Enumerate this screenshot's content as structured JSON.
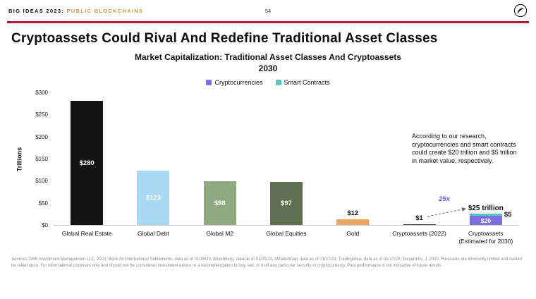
{
  "header": {
    "brand_left": "BIG IDEAS 2023:",
    "brand_right": "PUBLIC BLOCKCHAINS",
    "page_number": "54"
  },
  "title": "Cryptoassets Could Rival And Redefine Traditional Asset Classes",
  "accent_colors": {
    "divider_red": "#B01E33",
    "brand_gold": "#C19A3D",
    "growth_label_blue": "#5B64E0"
  },
  "chart_data": {
    "type": "bar",
    "title": "Market Capitalization: Traditional Asset Classes And Cryptoassets",
    "subtitle": "2030",
    "ylabel": "Trillions",
    "ylim": [
      0,
      300
    ],
    "grid": false,
    "legend_position": "top",
    "yticks": [
      {
        "value": 0,
        "label": "$0"
      },
      {
        "value": 50,
        "label": "$50"
      },
      {
        "value": 100,
        "label": "$100"
      },
      {
        "value": 150,
        "label": "$150"
      },
      {
        "value": 200,
        "label": "$200"
      },
      {
        "value": 250,
        "label": "$250"
      },
      {
        "value": 300,
        "label": "$300"
      }
    ],
    "legend": [
      {
        "label": "Cryptocurrencies",
        "color": "#7D6FE0"
      },
      {
        "label": "Smart Contracts",
        "color": "#4EC7C0"
      }
    ],
    "bars": [
      {
        "category": "Global Real Estate",
        "value": 280,
        "label": "$280",
        "color": "#141414",
        "label_position": "inside",
        "label_color": "#ffffff"
      },
      {
        "category": "Global Debt",
        "value": 123,
        "label": "$123",
        "color": "#A9D9F2",
        "label_position": "inside",
        "label_color": "#ffffff"
      },
      {
        "category": "Global M2",
        "value": 98,
        "label": "$98",
        "color": "#8FAA80",
        "label_position": "inside",
        "label_color": "#ffffff"
      },
      {
        "category": "Global Equities",
        "value": 97,
        "label": "$97",
        "color": "#5E7253",
        "label_position": "inside",
        "label_color": "#ffffff"
      },
      {
        "category": "Gold",
        "value": 12,
        "label": "$12",
        "color": "#F0A55F",
        "label_position": "above",
        "label_color": "#111111"
      },
      {
        "category": "Cryptoassets (2022)",
        "value": 1,
        "label": "$1",
        "color": "#3a3a3a",
        "label_position": "above",
        "label_color": "#111111"
      },
      {
        "category": "Cryptoassets (Estimated for 2030)",
        "stacked": true,
        "segments": [
          {
            "name": "Smart Contracts",
            "value": 5,
            "color": "#4EC7C0"
          },
          {
            "name": "Cryptocurrencies",
            "value": 20,
            "label": "$20",
            "color": "#7D6FE0",
            "label_color": "#ffffff"
          }
        ],
        "total_label": "$25 trillion",
        "side_label": "$5"
      }
    ],
    "annotation_note": "According to our research, cryptocurrencies and smart contracts could create $20 trillion and $5 trillion in market value, respectively.",
    "growth_label": "25x"
  },
  "footer": {
    "sources": "Sources: ARK Investment Management LLC, 2023. Bank for International Settlements, data as of 01/25/23; Bloomberg, data as of 01/25/23; 8MarketCap, data as of 01/17/23; TradingView, data as of 01/17/23; Desjardins, J. 2020. Forecasts are inherently limited and cannot be relied upon. For informational purposes only and should not be considered investment advice or a recommendation to buy, sell, or hold any particular security or cryptocurrency. Past performance is not indicative of future results."
  }
}
